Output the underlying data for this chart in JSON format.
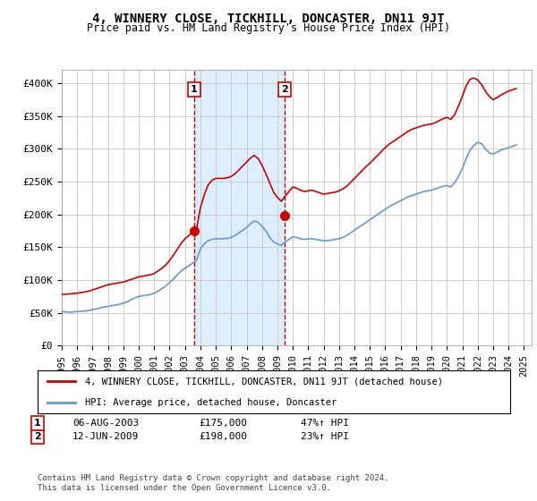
{
  "title": "4, WINNERY CLOSE, TICKHILL, DONCASTER, DN11 9JT",
  "subtitle": "Price paid vs. HM Land Registry's House Price Index (HPI)",
  "ylabel_ticks": [
    "£0",
    "£50K",
    "£100K",
    "£150K",
    "£200K",
    "£250K",
    "£300K",
    "£350K",
    "£400K"
  ],
  "ytick_values": [
    0,
    50000,
    100000,
    150000,
    200000,
    250000,
    300000,
    350000,
    400000
  ],
  "ylim": [
    0,
    420000
  ],
  "xlim_start": 1995.0,
  "xlim_end": 2025.5,
  "background_color": "#ffffff",
  "plot_bg_color": "#ffffff",
  "grid_color": "#cccccc",
  "transaction1": {
    "date": 2003.6,
    "price": 175000,
    "label": "1",
    "pct": "47%↑ HPI",
    "date_str": "06-AUG-2003"
  },
  "transaction2": {
    "date": 2009.45,
    "price": 198000,
    "label": "2",
    "pct": "23%↑ HPI",
    "date_str": "12-JUN-2009"
  },
  "legend_line1": "4, WINNERY CLOSE, TICKHILL, DONCASTER, DN11 9JT (detached house)",
  "legend_line2": "HPI: Average price, detached house, Doncaster",
  "footer1": "Contains HM Land Registry data © Crown copyright and database right 2024.",
  "footer2": "This data is licensed under the Open Government Licence v3.0.",
  "red_color": "#cc0000",
  "blue_color": "#6699cc",
  "shade_color": "#ddeeff",
  "hpi_data_x": [
    1995.0,
    1995.25,
    1995.5,
    1995.75,
    1996.0,
    1996.25,
    1996.5,
    1996.75,
    1997.0,
    1997.25,
    1997.5,
    1997.75,
    1998.0,
    1998.25,
    1998.5,
    1998.75,
    1999.0,
    1999.25,
    1999.5,
    1999.75,
    2000.0,
    2000.25,
    2000.5,
    2000.75,
    2001.0,
    2001.25,
    2001.5,
    2001.75,
    2002.0,
    2002.25,
    2002.5,
    2002.75,
    2003.0,
    2003.25,
    2003.5,
    2003.75,
    2004.0,
    2004.25,
    2004.5,
    2004.75,
    2005.0,
    2005.25,
    2005.5,
    2005.75,
    2006.0,
    2006.25,
    2006.5,
    2006.75,
    2007.0,
    2007.25,
    2007.5,
    2007.75,
    2008.0,
    2008.25,
    2008.5,
    2008.75,
    2009.0,
    2009.25,
    2009.5,
    2009.75,
    2010.0,
    2010.25,
    2010.5,
    2010.75,
    2011.0,
    2011.25,
    2011.5,
    2011.75,
    2012.0,
    2012.25,
    2012.5,
    2012.75,
    2013.0,
    2013.25,
    2013.5,
    2013.75,
    2014.0,
    2014.25,
    2014.5,
    2014.75,
    2015.0,
    2015.25,
    2015.5,
    2015.75,
    2016.0,
    2016.25,
    2016.5,
    2016.75,
    2017.0,
    2017.25,
    2017.5,
    2017.75,
    2018.0,
    2018.25,
    2018.5,
    2018.75,
    2019.0,
    2019.25,
    2019.5,
    2019.75,
    2020.0,
    2020.25,
    2020.5,
    2020.75,
    2021.0,
    2021.25,
    2021.5,
    2021.75,
    2022.0,
    2022.25,
    2022.5,
    2022.75,
    2023.0,
    2023.25,
    2023.5,
    2023.75,
    2024.0,
    2024.25,
    2024.5
  ],
  "hpi_data_y": [
    52000,
    51500,
    51000,
    51500,
    52000,
    52500,
    53000,
    53500,
    55000,
    56000,
    57500,
    59000,
    60000,
    61000,
    62000,
    63000,
    65000,
    67000,
    70000,
    73000,
    75000,
    76000,
    77000,
    78000,
    80000,
    83000,
    87000,
    91000,
    96000,
    102000,
    108000,
    114000,
    118000,
    122000,
    126000,
    130000,
    148000,
    155000,
    160000,
    162000,
    163000,
    163000,
    163000,
    163500,
    165000,
    168000,
    172000,
    176000,
    180000,
    186000,
    190000,
    188000,
    182000,
    175000,
    165000,
    158000,
    155000,
    153000,
    158000,
    162000,
    166000,
    165000,
    163000,
    162000,
    163000,
    163000,
    162000,
    161000,
    160000,
    160000,
    161000,
    162000,
    163000,
    165000,
    168000,
    172000,
    176000,
    180000,
    184000,
    188000,
    192000,
    196000,
    200000,
    204000,
    208000,
    212000,
    215000,
    218000,
    221000,
    224000,
    227000,
    229000,
    231000,
    233000,
    235000,
    236000,
    237000,
    239000,
    241000,
    243000,
    244000,
    242000,
    248000,
    258000,
    270000,
    285000,
    298000,
    305000,
    310000,
    308000,
    300000,
    294000,
    292000,
    295000,
    298000,
    300000,
    302000,
    304000,
    306000
  ],
  "price_data_x": [
    1995.0,
    1995.25,
    1995.5,
    1995.75,
    1996.0,
    1996.25,
    1996.5,
    1996.75,
    1997.0,
    1997.25,
    1997.5,
    1997.75,
    1998.0,
    1998.25,
    1998.5,
    1998.75,
    1999.0,
    1999.25,
    1999.5,
    1999.75,
    2000.0,
    2000.25,
    2000.5,
    2000.75,
    2001.0,
    2001.25,
    2001.5,
    2001.75,
    2002.0,
    2002.25,
    2002.5,
    2002.75,
    2003.0,
    2003.25,
    2003.5,
    2003.75,
    2004.0,
    2004.25,
    2004.5,
    2004.75,
    2005.0,
    2005.25,
    2005.5,
    2005.75,
    2006.0,
    2006.25,
    2006.5,
    2006.75,
    2007.0,
    2007.25,
    2007.5,
    2007.75,
    2008.0,
    2008.25,
    2008.5,
    2008.75,
    2009.0,
    2009.25,
    2009.5,
    2009.75,
    2010.0,
    2010.25,
    2010.5,
    2010.75,
    2011.0,
    2011.25,
    2011.5,
    2011.75,
    2012.0,
    2012.25,
    2012.5,
    2012.75,
    2013.0,
    2013.25,
    2013.5,
    2013.75,
    2014.0,
    2014.25,
    2014.5,
    2014.75,
    2015.0,
    2015.25,
    2015.5,
    2015.75,
    2016.0,
    2016.25,
    2016.5,
    2016.75,
    2017.0,
    2017.25,
    2017.5,
    2017.75,
    2018.0,
    2018.25,
    2018.5,
    2018.75,
    2019.0,
    2019.25,
    2019.5,
    2019.75,
    2020.0,
    2020.25,
    2020.5,
    2020.75,
    2021.0,
    2021.25,
    2021.5,
    2021.75,
    2022.0,
    2022.25,
    2022.5,
    2022.75,
    2023.0,
    2023.25,
    2023.5,
    2023.75,
    2024.0,
    2024.25,
    2024.5
  ],
  "price_data_y": [
    78000,
    78500,
    79000,
    79500,
    80000,
    81000,
    82000,
    83000,
    85000,
    87000,
    89000,
    91000,
    93000,
    94000,
    95000,
    96000,
    97000,
    99000,
    101000,
    103000,
    105000,
    106000,
    107000,
    108000,
    110000,
    114000,
    118000,
    123000,
    130000,
    138000,
    147000,
    156000,
    163000,
    168000,
    173000,
    178000,
    210000,
    230000,
    245000,
    252000,
    255000,
    255000,
    255000,
    256000,
    258000,
    262000,
    268000,
    274000,
    280000,
    286000,
    290000,
    285000,
    275000,
    262000,
    248000,
    234000,
    226000,
    220000,
    228000,
    235000,
    242000,
    240000,
    237000,
    235000,
    236000,
    237000,
    235000,
    233000,
    231000,
    232000,
    233000,
    234000,
    236000,
    239000,
    243000,
    249000,
    255000,
    261000,
    267000,
    273000,
    278000,
    284000,
    290000,
    296000,
    302000,
    307000,
    311000,
    315000,
    319000,
    323000,
    327000,
    330000,
    332000,
    334000,
    336000,
    337000,
    338000,
    340000,
    343000,
    346000,
    348000,
    345000,
    352000,
    365000,
    380000,
    396000,
    406000,
    408000,
    405000,
    398000,
    388000,
    380000,
    375000,
    378000,
    382000,
    385000,
    388000,
    390000,
    392000
  ],
  "xtick_years": [
    1995,
    1996,
    1997,
    1998,
    1999,
    2000,
    2001,
    2002,
    2003,
    2004,
    2005,
    2006,
    2007,
    2008,
    2009,
    2010,
    2011,
    2012,
    2013,
    2014,
    2015,
    2016,
    2017,
    2018,
    2019,
    2020,
    2021,
    2022,
    2023,
    2024,
    2025
  ]
}
